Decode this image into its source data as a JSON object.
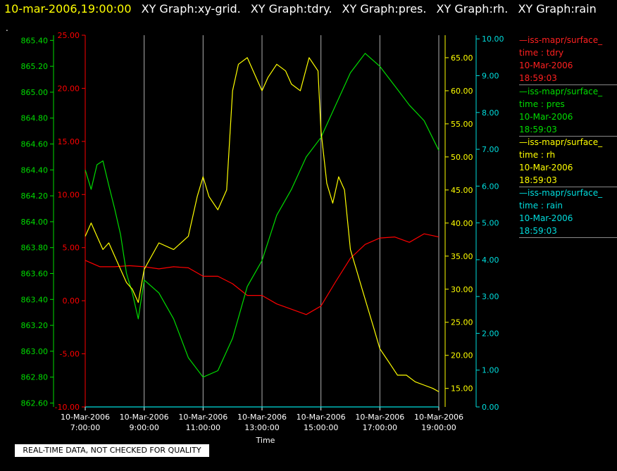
{
  "header": {
    "timestamp": "10-mar-2006,19:00:00",
    "graphs": [
      "XY Graph:xy-grid.",
      "XY Graph:tdry.",
      "XY Graph:pres.",
      "XY Graph:rh.",
      "XY Graph:rain"
    ],
    "dot": "."
  },
  "colors": {
    "tdry": "#ff0000",
    "pres": "#00dd00",
    "rh": "#ffff00",
    "rain": "#00dddd",
    "grid": "#b0b0b0",
    "background": "#000000"
  },
  "legend": [
    {
      "line": "—iss-mapr/surface_",
      "var": "time : tdry",
      "date": "10-Mar-2006",
      "time": "18:59:03",
      "color": "#ff2020"
    },
    {
      "line": "—iss-mapr/surface_",
      "var": "time : pres",
      "date": "10-Mar-2006",
      "time": "18:59:03",
      "color": "#00dd00"
    },
    {
      "line": "—iss-mapr/surface_",
      "var": "time : rh",
      "date": "10-Mar-2006",
      "time": "18:59:03",
      "color": "#ffff00"
    },
    {
      "line": "—iss-mapr/surface_",
      "var": "time : rain",
      "date": "10-Mar-2006",
      "time": "18:59:03",
      "color": "#00dddd"
    }
  ],
  "note": "REAL-TIME DATA, NOT CHECKED FOR QUALITY",
  "chart_data": {
    "type": "line",
    "xlabel": "Time",
    "x_ticks": [
      {
        "date": "10-Mar-2006",
        "time": "7:00:00"
      },
      {
        "date": "10-Mar-2006",
        "time": "9:00:00"
      },
      {
        "date": "10-Mar-2006",
        "time": "11:00:00"
      },
      {
        "date": "10-Mar-2006",
        "time": "13:00:00"
      },
      {
        "date": "10-Mar-2006",
        "time": "15:00:00"
      },
      {
        "date": "10-Mar-2006",
        "time": "17:00:00"
      },
      {
        "date": "10-Mar-2006",
        "time": "19:00:00"
      }
    ],
    "xlim": [
      7,
      19
    ],
    "axes": {
      "pres": {
        "ylim": [
          862.57,
          865.44
        ],
        "ticks": [
          "862.60",
          "862.80",
          "863.00",
          "863.20",
          "863.40",
          "863.60",
          "863.80",
          "864.00",
          "864.20",
          "864.40",
          "864.60",
          "864.80",
          "865.00",
          "865.20",
          "865.40"
        ]
      },
      "tdry": {
        "ylim": [
          -10,
          25
        ],
        "ticks": [
          "-10.00",
          "-5.00",
          "0.00",
          "5.00",
          "10.00",
          "15.00",
          "20.00",
          "25.00"
        ]
      },
      "rh": {
        "ylim": [
          12.2,
          68.4
        ],
        "ticks": [
          "15.00",
          "20.00",
          "25.00",
          "30.00",
          "35.00",
          "40.00",
          "45.00",
          "50.00",
          "55.00",
          "60.00",
          "65.00"
        ]
      },
      "rain": {
        "ylim": [
          0,
          10.1
        ],
        "ticks": [
          "0.00",
          "1.00",
          "2.00",
          "3.00",
          "4.00",
          "5.00",
          "6.00",
          "7.00",
          "8.00",
          "9.00",
          "10.00"
        ]
      }
    },
    "grid": true,
    "series": [
      {
        "name": "time : tdry",
        "axis": "tdry",
        "x": [
          7.0,
          7.5,
          8.0,
          8.5,
          9.0,
          9.5,
          10.0,
          10.5,
          11.0,
          11.5,
          12.0,
          12.5,
          13.0,
          13.5,
          14.0,
          14.5,
          15.0,
          15.5,
          16.0,
          16.5,
          17.0,
          17.5,
          18.0,
          18.5,
          19.0
        ],
        "y": [
          3.8,
          3.2,
          3.2,
          3.3,
          3.2,
          3.0,
          3.2,
          3.1,
          2.3,
          2.3,
          1.6,
          0.5,
          0.5,
          -0.3,
          -0.8,
          -1.3,
          -0.5,
          1.8,
          4.0,
          5.3,
          5.9,
          6.0,
          5.5,
          6.3,
          6.0
        ]
      },
      {
        "name": "time : pres",
        "axis": "pres",
        "x": [
          7.0,
          7.2,
          7.4,
          7.6,
          7.8,
          8.0,
          8.2,
          8.4,
          8.6,
          8.8,
          9.0,
          9.5,
          10.0,
          10.5,
          11.0,
          11.5,
          12.0,
          12.5,
          13.0,
          13.5,
          14.0,
          14.5,
          15.0,
          15.5,
          16.0,
          16.5,
          17.0,
          17.5,
          18.0,
          18.5,
          19.0
        ],
        "y": [
          864.4,
          864.25,
          864.44,
          864.47,
          864.28,
          864.1,
          863.9,
          863.6,
          863.45,
          863.25,
          863.55,
          863.45,
          863.25,
          862.95,
          862.8,
          862.85,
          863.1,
          863.5,
          863.7,
          864.05,
          864.25,
          864.5,
          864.65,
          864.9,
          865.15,
          865.3,
          865.2,
          865.05,
          864.9,
          864.78,
          864.55
        ]
      },
      {
        "name": "time : rh",
        "axis": "rh",
        "x": [
          7.0,
          7.2,
          7.4,
          7.6,
          7.8,
          8.0,
          8.2,
          8.4,
          8.6,
          8.8,
          9.0,
          9.5,
          10.0,
          10.5,
          10.8,
          11.0,
          11.2,
          11.5,
          11.8,
          12.0,
          12.2,
          12.5,
          12.8,
          13.0,
          13.2,
          13.5,
          13.8,
          14.0,
          14.3,
          14.6,
          14.9,
          15.0,
          15.2,
          15.4,
          15.6,
          15.8,
          16.0,
          16.2,
          16.4,
          16.6,
          16.8,
          17.0,
          17.3,
          17.6,
          17.9,
          18.2,
          18.5,
          18.8,
          19.0
        ],
        "y": [
          38.0,
          40.0,
          38.0,
          36.0,
          37.0,
          35.0,
          33.0,
          31.0,
          30.0,
          28.0,
          33.0,
          37.0,
          36.0,
          38.0,
          44.0,
          47.0,
          44.0,
          42.0,
          45.0,
          60.0,
          64.0,
          65.0,
          62.0,
          60.0,
          62.0,
          64.0,
          63.0,
          61.0,
          60.0,
          65.0,
          63.0,
          54.0,
          46.0,
          43.0,
          47.0,
          45.0,
          36.0,
          33.0,
          30.0,
          27.0,
          24.0,
          21.0,
          19.0,
          17.0,
          17.0,
          16.0,
          15.5,
          15.0,
          14.5
        ]
      },
      {
        "name": "time : rain",
        "axis": "rain",
        "x": [
          7.0,
          19.0
        ],
        "y": [
          0.0,
          0.0
        ]
      }
    ]
  }
}
